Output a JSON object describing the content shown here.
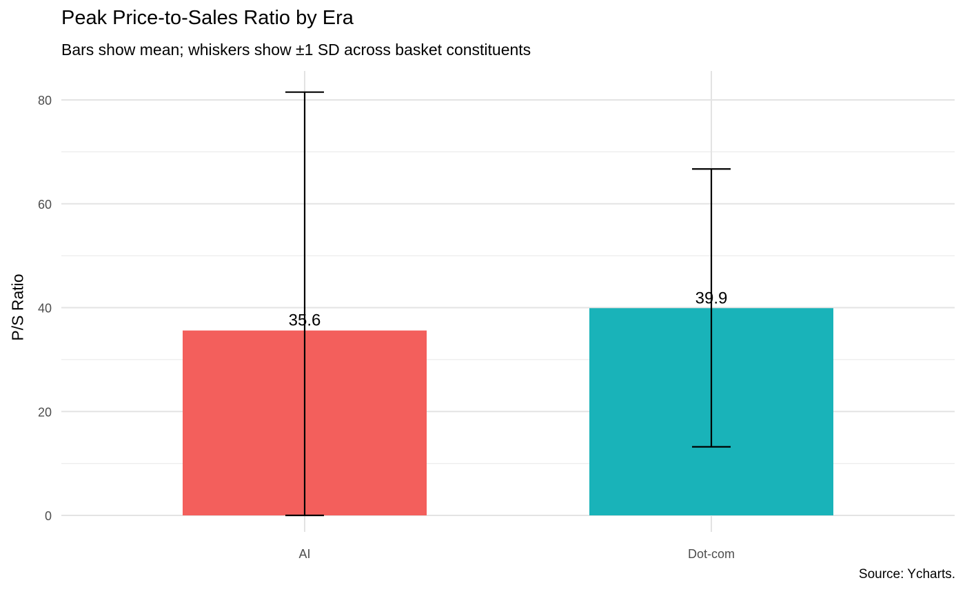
{
  "chart_data": {
    "type": "bar",
    "title": "Peak Price-to-Sales Ratio by Era",
    "subtitle": "Bars show mean; whiskers show ±1 SD across basket constituents",
    "xlabel": "",
    "ylabel": "P/S Ratio",
    "caption": "Source: Ycharts.",
    "categories": [
      "AI",
      "Dot-com"
    ],
    "values": [
      35.6,
      39.9
    ],
    "value_labels": [
      "35.6",
      "39.9"
    ],
    "error_low": [
      0,
      13.2
    ],
    "error_high": [
      81.5,
      66.7
    ],
    "colors": [
      "#F35F5C",
      "#19B3B9"
    ],
    "ylim": [
      0,
      85
    ],
    "yticks": [
      0,
      20,
      40,
      60,
      80
    ],
    "grid": true,
    "legend": "none"
  }
}
